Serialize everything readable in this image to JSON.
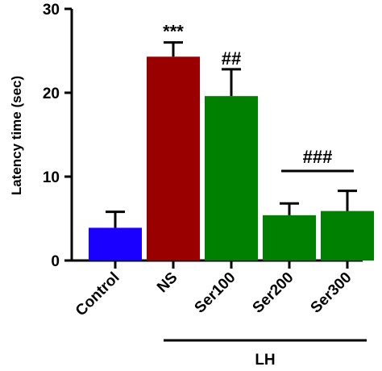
{
  "chart_data": {
    "type": "bar",
    "title": "",
    "xlabel": "",
    "ylabel": "Latency time (sec)",
    "ylim": [
      0,
      30
    ],
    "yticks": [
      0,
      10,
      20,
      30
    ],
    "grid": false,
    "categories": [
      "Control",
      "NS",
      "Ser100",
      "Ser200",
      "Ser300"
    ],
    "values": [
      3.9,
      24.3,
      19.6,
      5.4,
      5.9
    ],
    "errors": [
      1.9,
      1.7,
      3.2,
      1.4,
      2.4
    ],
    "colors": [
      "#1a00ff",
      "#9b0000",
      "#008000",
      "#008000",
      "#008000"
    ],
    "annotations": [
      {
        "category": "NS",
        "text": "***"
      },
      {
        "category": "Ser100",
        "text": "##"
      },
      {
        "categories": [
          "Ser200",
          "Ser300"
        ],
        "text": "###"
      }
    ],
    "groups": [
      {
        "label": "LH",
        "categories": [
          "NS",
          "Ser100",
          "Ser200",
          "Ser300"
        ]
      }
    ]
  }
}
